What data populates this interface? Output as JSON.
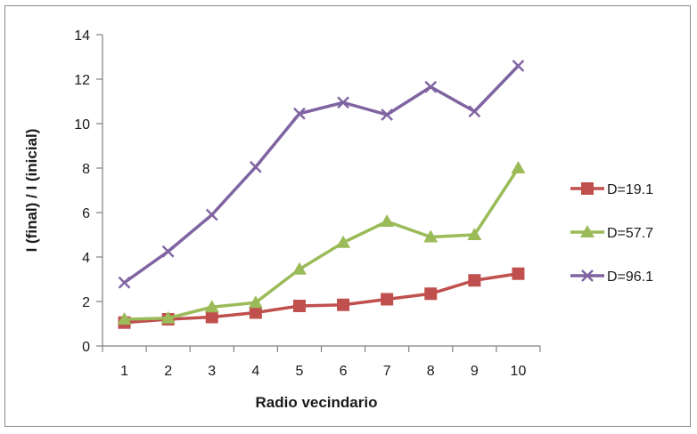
{
  "chart_data": {
    "type": "line",
    "title": "",
    "xlabel": "Radio vecindario",
    "ylabel": "I (final) / I (inicial)",
    "x": [
      1,
      2,
      3,
      4,
      5,
      6,
      7,
      8,
      9,
      10
    ],
    "ylim": [
      0,
      14
    ],
    "yticks": [
      0,
      2,
      4,
      6,
      8,
      10,
      12,
      14
    ],
    "grid": false,
    "legend_position": "right",
    "series": [
      {
        "name": "D=19.1",
        "color": "#c0504d",
        "marker": "square",
        "values": [
          1.05,
          1.2,
          1.3,
          1.5,
          1.8,
          1.85,
          2.1,
          2.35,
          2.95,
          3.25
        ]
      },
      {
        "name": "D=57.7",
        "color": "#9bbb59",
        "marker": "triangle",
        "values": [
          1.2,
          1.25,
          1.75,
          1.95,
          3.45,
          4.65,
          5.6,
          4.9,
          5.0,
          8.0
        ]
      },
      {
        "name": "D=96.1",
        "color": "#8064a2",
        "marker": "x",
        "values": [
          2.85,
          4.25,
          5.9,
          8.05,
          10.45,
          10.95,
          10.4,
          11.65,
          10.55,
          12.6
        ]
      }
    ]
  }
}
